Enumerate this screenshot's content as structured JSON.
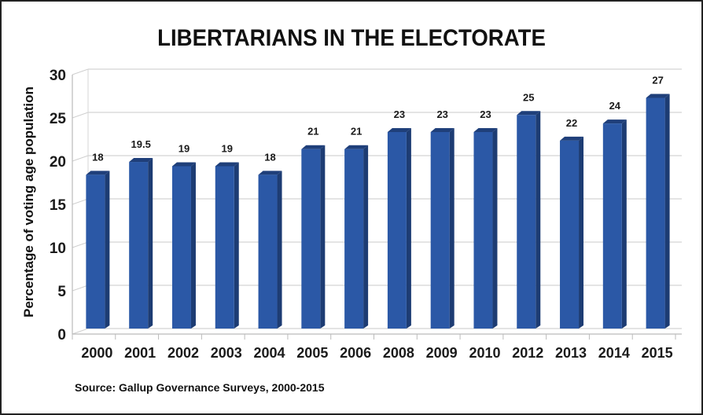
{
  "chart_data": {
    "type": "bar",
    "title": "LIBERTARIANS IN THE ELECTORATE",
    "xlabel": "",
    "ylabel": "Percentage of voting age population",
    "ylim": [
      0,
      30
    ],
    "yticks": [
      "0",
      "5",
      "10",
      "15",
      "20",
      "25",
      "30"
    ],
    "grid": true,
    "categories": [
      "2000",
      "2001",
      "2002",
      "2003",
      "2004",
      "2005",
      "2006",
      "2008",
      "2009",
      "2010",
      "2012",
      "2013",
      "2014",
      "2015"
    ],
    "values": [
      18,
      19.5,
      19,
      19,
      18,
      21,
      21,
      23,
      23,
      23,
      25,
      22,
      24,
      27
    ],
    "value_labels": [
      "18",
      "19.5",
      "19",
      "19",
      "18",
      "21",
      "21",
      "23",
      "23",
      "23",
      "25",
      "22",
      "24",
      "27"
    ],
    "bar_color": "#2b58a6",
    "bar_side_color": "#1d3c73",
    "bar_top_color": "#1f3f7a",
    "source": "Source: Gallup Governance Surveys, 2000-2015"
  }
}
